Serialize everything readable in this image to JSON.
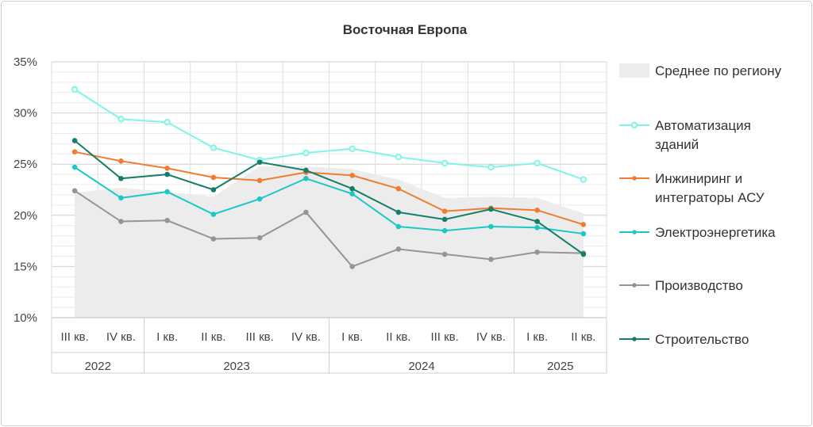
{
  "chart_data": {
    "type": "line",
    "title": "Восточная Европа",
    "ylim": [
      10,
      35
    ],
    "yticks": [
      "10%",
      "15%",
      "20%",
      "25%",
      "30%",
      "35%"
    ],
    "ytick_values": [
      10,
      15,
      20,
      25,
      30,
      35
    ],
    "categories": [
      "III кв.",
      "IV кв.",
      "I кв.",
      "II кв.",
      "III кв.",
      "IV кв.",
      "I кв.",
      "II кв.",
      "III кв.",
      "IV кв.",
      "I кв.",
      "II кв."
    ],
    "year_groups": [
      {
        "label": "2022",
        "count": 2
      },
      {
        "label": "2023",
        "count": 4
      },
      {
        "label": "2024",
        "count": 4
      },
      {
        "label": "2025",
        "count": 2
      }
    ],
    "area": {
      "name": "Среднее по региону",
      "color": "#ececec",
      "values": [
        22.2,
        22.7,
        22.3,
        21.8,
        24.8,
        24.8,
        24.5,
        23.5,
        21.7,
        21.8,
        21.7,
        20.2
      ]
    },
    "series": [
      {
        "name": "Автоматизация зданий",
        "color": "#7ff5e6",
        "marker": "hollow",
        "values": [
          32.3,
          29.4,
          29.1,
          26.6,
          25.4,
          26.1,
          26.5,
          25.7,
          25.1,
          24.7,
          25.1,
          23.5
        ]
      },
      {
        "name": "Инжиниринг и интеграторы АСУ",
        "color": "#f07c31",
        "marker": "dot",
        "values": [
          26.2,
          25.3,
          24.6,
          23.7,
          23.4,
          24.2,
          23.9,
          22.6,
          20.4,
          20.7,
          20.5,
          19.1
        ]
      },
      {
        "name": "Электроэнергетика",
        "color": "#1cc8c4",
        "marker": "dot",
        "values": [
          24.7,
          21.7,
          22.3,
          20.1,
          21.6,
          23.6,
          22.1,
          18.9,
          18.5,
          18.9,
          18.8,
          18.2
        ]
      },
      {
        "name": "Производство",
        "color": "#959595",
        "marker": "dot",
        "values": [
          22.4,
          19.4,
          19.5,
          17.7,
          17.8,
          20.3,
          15.0,
          16.7,
          16.2,
          15.7,
          16.4,
          16.3
        ]
      },
      {
        "name": "Строительство",
        "color": "#147e69",
        "marker": "dot",
        "values": [
          27.3,
          23.6,
          24.0,
          22.5,
          25.2,
          24.4,
          22.6,
          20.3,
          19.6,
          20.6,
          19.4,
          16.2
        ]
      }
    ],
    "grid": true,
    "legend_position": "right"
  }
}
